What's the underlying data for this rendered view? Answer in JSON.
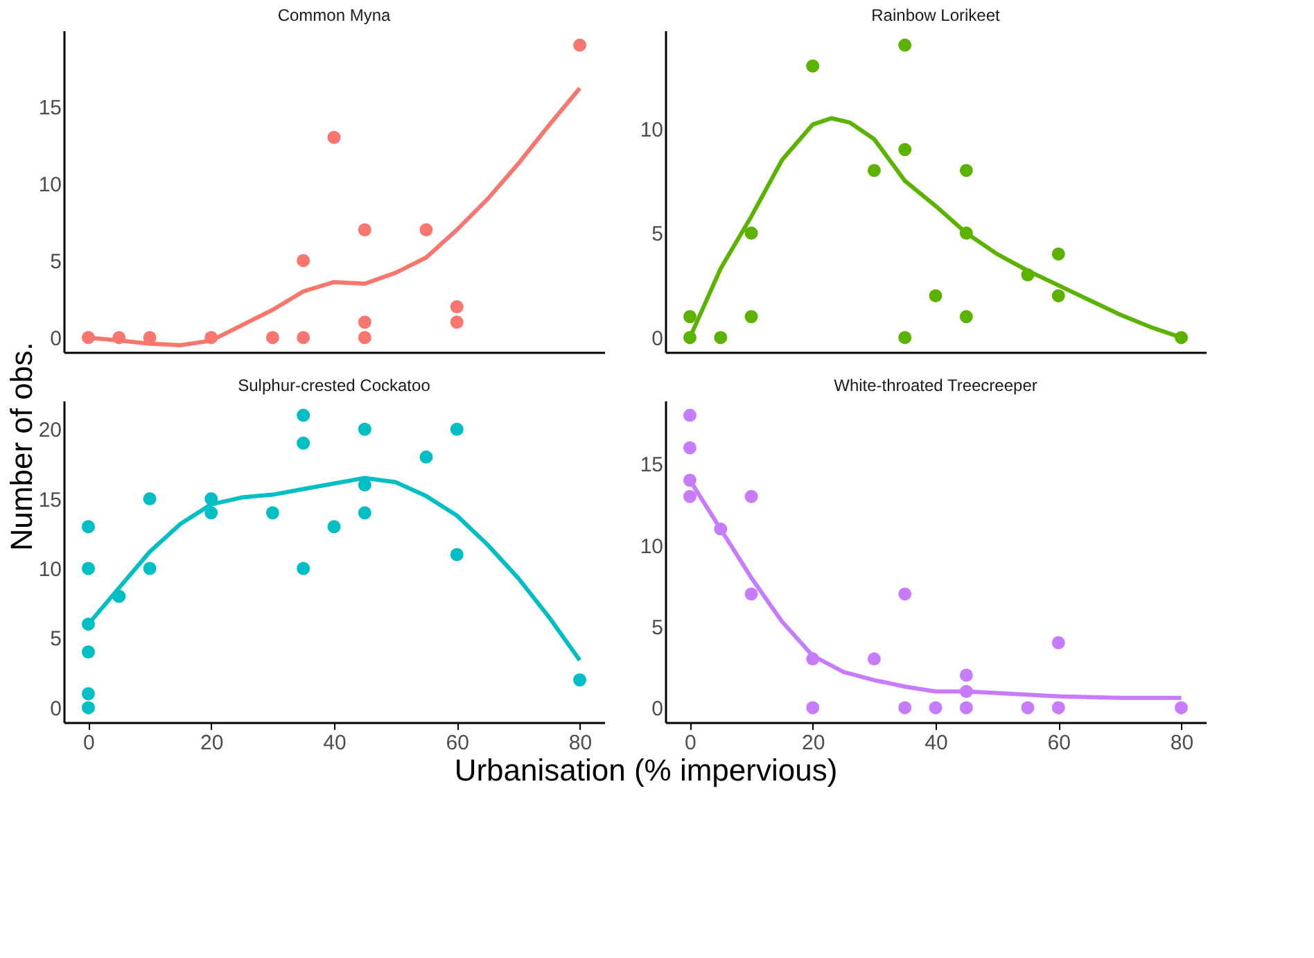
{
  "chart_data": [
    {
      "type": "scatter",
      "title": "Common Myna",
      "ylabel": "Number of obs.",
      "xlim": [
        -4,
        84
      ],
      "ylim": [
        -0.95,
        19.95
      ],
      "yticks": [
        0,
        5,
        10,
        15
      ],
      "tick_labels": "y",
      "grid": false,
      "series": [
        {
          "marker": "circle",
          "color": "#f8766d",
          "x": [
            0,
            5,
            10,
            20,
            30,
            35,
            35,
            40,
            45,
            45,
            45,
            55,
            60,
            60,
            80
          ],
          "values": [
            0,
            0,
            0,
            0,
            0,
            0,
            5,
            13,
            7,
            1,
            0,
            7,
            2,
            1,
            19
          ]
        },
        {
          "type": "line",
          "marker": "none",
          "color": "#f8766d",
          "x": [
            0,
            5,
            10,
            15,
            20,
            25,
            30,
            35,
            40,
            45,
            50,
            55,
            60,
            65,
            70,
            75,
            80
          ],
          "values": [
            0,
            -0.2,
            -0.4,
            -0.5,
            -0.2,
            0.8,
            1.8,
            3,
            3.6,
            3.5,
            4.2,
            5.2,
            7,
            9,
            11.3,
            13.8,
            16.2
          ]
        }
      ]
    },
    {
      "type": "scatter",
      "title": "Rainbow Lorikeet",
      "xlim": [
        -4,
        84
      ],
      "ylim": [
        -0.7,
        14.7
      ],
      "yticks": [
        0,
        5,
        10
      ],
      "tick_labels": "y",
      "grid": false,
      "series": [
        {
          "marker": "circle",
          "color": "#5bb300",
          "x": [
            0,
            0,
            5,
            10,
            10,
            20,
            30,
            35,
            35,
            35,
            40,
            45,
            45,
            45,
            55,
            60,
            60,
            80
          ],
          "values": [
            0,
            1,
            0,
            5,
            1,
            13,
            8,
            14,
            9,
            0,
            2,
            8,
            5,
            1,
            3,
            4,
            2,
            0
          ]
        },
        {
          "type": "line",
          "marker": "none",
          "color": "#5bb300",
          "x": [
            0,
            5,
            10,
            15,
            20,
            23,
            26,
            30,
            33,
            35,
            40,
            45,
            50,
            55,
            60,
            65,
            70,
            75,
            80
          ],
          "values": [
            0,
            3.3,
            5.8,
            8.5,
            10.2,
            10.5,
            10.3,
            9.5,
            8.3,
            7.5,
            6.3,
            5.0,
            4.0,
            3.2,
            2.5,
            1.8,
            1.1,
            0.5,
            0
          ]
        }
      ]
    },
    {
      "type": "scatter",
      "title": "Sulphur-crested Cockatoo",
      "xlabel": "Urbanisation (% impervious)",
      "xlim": [
        -4,
        84
      ],
      "xticks": [
        0,
        20,
        40,
        60,
        80
      ],
      "ylim": [
        -1.05,
        22.05
      ],
      "yticks": [
        0,
        5,
        10,
        15,
        20
      ],
      "grid": false,
      "series": [
        {
          "marker": "circle",
          "color": "#00bfc4",
          "x": [
            0,
            0,
            0,
            0,
            0,
            0,
            5,
            10,
            10,
            20,
            20,
            30,
            35,
            35,
            35,
            40,
            45,
            45,
            45,
            55,
            60,
            60,
            80
          ],
          "values": [
            0,
            1,
            4,
            6,
            10,
            13,
            8,
            15,
            10,
            15,
            14,
            14,
            21,
            19,
            10,
            13,
            20,
            16,
            14,
            18,
            20,
            11,
            2
          ]
        },
        {
          "type": "line",
          "marker": "none",
          "color": "#00bfc4",
          "x": [
            0,
            5,
            10,
            15,
            20,
            25,
            30,
            35,
            40,
            45,
            50,
            55,
            60,
            65,
            70,
            75,
            80
          ],
          "values": [
            6,
            8.6,
            11.2,
            13.2,
            14.6,
            15.1,
            15.3,
            15.7,
            16.1,
            16.5,
            16.2,
            15.2,
            13.8,
            11.7,
            9.3,
            6.5,
            3.4
          ]
        }
      ]
    },
    {
      "type": "scatter",
      "title": "White-throated Treecreeper",
      "xlim": [
        -4,
        84
      ],
      "xticks": [
        0,
        20,
        40,
        60,
        80
      ],
      "ylim": [
        -0.9,
        18.9
      ],
      "yticks": [
        0,
        5,
        10,
        15
      ],
      "grid": false,
      "series": [
        {
          "marker": "circle",
          "color": "#c77cff",
          "x": [
            0,
            0,
            0,
            0,
            5,
            10,
            10,
            20,
            20,
            30,
            35,
            35,
            40,
            45,
            45,
            45,
            55,
            60,
            60,
            80
          ],
          "values": [
            18,
            16,
            14,
            13,
            11,
            13,
            7,
            3,
            0,
            3,
            7,
            0,
            0,
            2,
            1,
            0,
            0,
            4,
            0,
            0
          ]
        },
        {
          "type": "line",
          "marker": "none",
          "color": "#c77cff",
          "x": [
            0,
            5,
            10,
            15,
            20,
            25,
            30,
            35,
            40,
            45,
            50,
            60,
            70,
            80
          ],
          "values": [
            14,
            11,
            8,
            5.3,
            3.2,
            2.2,
            1.7,
            1.3,
            1.0,
            1.0,
            0.9,
            0.7,
            0.6,
            0.6
          ]
        }
      ]
    }
  ]
}
